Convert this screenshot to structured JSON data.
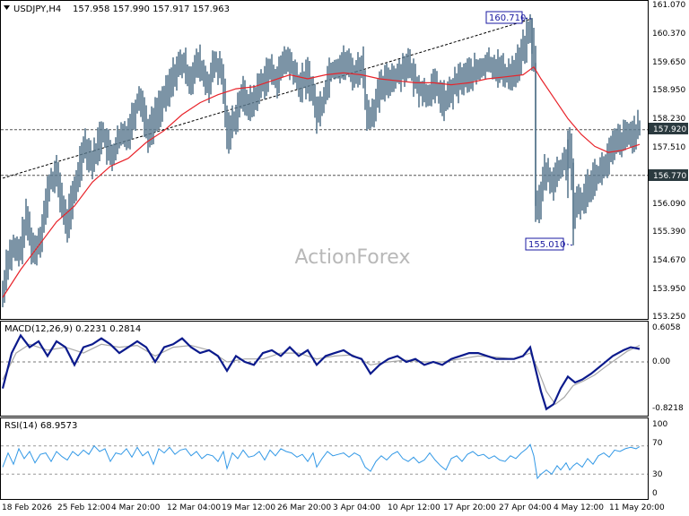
{
  "header": {
    "symbol": "USDJPY,H4",
    "ohlc": "157.958 157.990 157.917 157.963"
  },
  "watermark": "ActionForex",
  "colors": {
    "candle": "#5b7a8f",
    "ma": "#e8232a",
    "trendline": "#000000",
    "macd": "#0b1a8c",
    "signal": "#a8a8a8",
    "rsi": "#3399e6",
    "tag_bg": "#2b3a3f",
    "annot_border": "#1a1aa0"
  },
  "price_panel": {
    "y_ticks": [
      "161.070",
      "160.370",
      "159.650",
      "158.950",
      "158.230",
      "157.510",
      "156.090",
      "155.390",
      "154.670",
      "153.950",
      "153.250"
    ],
    "tags": {
      "current": "157.920",
      "level": "156.770"
    },
    "annotations": {
      "high": "160.710",
      "low": "155.010"
    }
  },
  "macd_panel": {
    "label": "MACD(12,26,9) 0.2231 0.2814",
    "y_ticks": [
      "0.6058",
      "0.00",
      "-0.8218"
    ]
  },
  "rsi_panel": {
    "label": "RSI(14) 68.9573",
    "y_ticks": [
      "100",
      "70",
      "30",
      "0"
    ]
  },
  "x_axis": {
    "labels": [
      "18 Feb 2026",
      "25 Feb 12:00",
      "4 Mar 20:00",
      "12 Mar 04:00",
      "19 Mar 12:00",
      "26 Mar 20:00",
      "3 Apr 04:00",
      "10 Apr 12:00",
      "17 Apr 20:00",
      "27 Apr 04:00",
      "4 May 12:00",
      "11 May 20:00"
    ]
  },
  "chart_data": {
    "type": "candlestick",
    "symbol": "USDJPY",
    "timeframe": "H4",
    "ylim": [
      153.25,
      161.07
    ],
    "price_path": [
      [
        0,
        153.8
      ],
      [
        4,
        154.6
      ],
      [
        10,
        154.9
      ],
      [
        18,
        154.8
      ],
      [
        26,
        155.7
      ],
      [
        34,
        154.8
      ],
      [
        42,
        155.3
      ],
      [
        52,
        156.6
      ],
      [
        60,
        156.8
      ],
      [
        70,
        155.5
      ],
      [
        80,
        156.4
      ],
      [
        90,
        157.6
      ],
      [
        100,
        157.1
      ],
      [
        110,
        157.9
      ],
      [
        120,
        157.2
      ],
      [
        130,
        157.7
      ],
      [
        140,
        157.9
      ],
      [
        152,
        158.8
      ],
      [
        162,
        157.8
      ],
      [
        172,
        158.4
      ],
      [
        182,
        158.8
      ],
      [
        192,
        159.4
      ],
      [
        200,
        159.6
      ],
      [
        208,
        159.2
      ],
      [
        218,
        159.6
      ],
      [
        228,
        159.0
      ],
      [
        236,
        159.6
      ],
      [
        244,
        159.3
      ],
      [
        250,
        157.8
      ],
      [
        258,
        158.2
      ],
      [
        266,
        158.8
      ],
      [
        276,
        158.5
      ],
      [
        286,
        159.0
      ],
      [
        296,
        159.4
      ],
      [
        306,
        159.2
      ],
      [
        314,
        159.7
      ],
      [
        322,
        159.5
      ],
      [
        330,
        159.0
      ],
      [
        340,
        159.3
      ],
      [
        350,
        158.3
      ],
      [
        356,
        158.6
      ],
      [
        364,
        159.4
      ],
      [
        372,
        159.5
      ],
      [
        382,
        159.6
      ],
      [
        392,
        159.3
      ],
      [
        400,
        159.6
      ],
      [
        406,
        158.2
      ],
      [
        412,
        158.4
      ],
      [
        420,
        158.9
      ],
      [
        430,
        159.2
      ],
      [
        440,
        159.3
      ],
      [
        450,
        159.6
      ],
      [
        460,
        159.1
      ],
      [
        470,
        158.8
      ],
      [
        482,
        159.0
      ],
      [
        492,
        158.6
      ],
      [
        500,
        158.9
      ],
      [
        510,
        159.2
      ],
      [
        520,
        159.3
      ],
      [
        530,
        159.4
      ],
      [
        540,
        159.6
      ],
      [
        550,
        159.5
      ],
      [
        560,
        159.3
      ],
      [
        570,
        159.4
      ],
      [
        578,
        159.8
      ],
      [
        586,
        160.4
      ],
      [
        590,
        160.3
      ],
      [
        592,
        159.6
      ],
      [
        594,
        156.2
      ],
      [
        598,
        156.0
      ],
      [
        604,
        156.9
      ],
      [
        612,
        156.6
      ],
      [
        620,
        156.9
      ],
      [
        628,
        157.2
      ],
      [
        632,
        157.6
      ],
      [
        636,
        155.6
      ],
      [
        640,
        156.2
      ],
      [
        646,
        156.1
      ],
      [
        652,
        156.5
      ],
      [
        660,
        156.8
      ],
      [
        668,
        156.9
      ],
      [
        676,
        157.3
      ],
      [
        684,
        157.6
      ],
      [
        692,
        157.7
      ],
      [
        700,
        157.8
      ],
      [
        710,
        157.96
      ]
    ],
    "moving_average": [
      [
        0,
        153.7
      ],
      [
        20,
        154.4
      ],
      [
        40,
        155.0
      ],
      [
        60,
        155.6
      ],
      [
        80,
        156.0
      ],
      [
        100,
        156.6
      ],
      [
        120,
        157.0
      ],
      [
        140,
        157.2
      ],
      [
        160,
        157.6
      ],
      [
        180,
        157.9
      ],
      [
        200,
        158.3
      ],
      [
        220,
        158.6
      ],
      [
        240,
        158.8
      ],
      [
        260,
        158.95
      ],
      [
        280,
        159.0
      ],
      [
        300,
        159.15
      ],
      [
        320,
        159.3
      ],
      [
        340,
        159.2
      ],
      [
        360,
        159.3
      ],
      [
        380,
        159.35
      ],
      [
        400,
        159.3
      ],
      [
        420,
        159.2
      ],
      [
        440,
        159.15
      ],
      [
        460,
        159.1
      ],
      [
        480,
        159.1
      ],
      [
        500,
        159.05
      ],
      [
        520,
        159.1
      ],
      [
        540,
        159.2
      ],
      [
        560,
        159.25
      ],
      [
        580,
        159.3
      ],
      [
        592,
        159.5
      ],
      [
        600,
        159.2
      ],
      [
        615,
        158.7
      ],
      [
        630,
        158.2
      ],
      [
        645,
        157.8
      ],
      [
        660,
        157.5
      ],
      [
        675,
        157.35
      ],
      [
        690,
        157.4
      ],
      [
        710,
        157.55
      ]
    ],
    "trendline": {
      "from": [
        0,
        156.7
      ],
      "to": [
        590,
        160.71
      ]
    },
    "high": 160.71,
    "low": 155.01,
    "levels": [
      157.92,
      156.77
    ],
    "macd_path": [
      [
        0,
        -0.45
      ],
      [
        10,
        0.15
      ],
      [
        20,
        0.45
      ],
      [
        30,
        0.25
      ],
      [
        40,
        0.35
      ],
      [
        50,
        0.1
      ],
      [
        60,
        0.35
      ],
      [
        70,
        0.25
      ],
      [
        80,
        -0.05
      ],
      [
        90,
        0.25
      ],
      [
        100,
        0.3
      ],
      [
        110,
        0.4
      ],
      [
        120,
        0.3
      ],
      [
        130,
        0.15
      ],
      [
        140,
        0.25
      ],
      [
        150,
        0.35
      ],
      [
        160,
        0.25
      ],
      [
        170,
        0.0
      ],
      [
        180,
        0.25
      ],
      [
        190,
        0.3
      ],
      [
        200,
        0.4
      ],
      [
        210,
        0.25
      ],
      [
        220,
        0.15
      ],
      [
        230,
        0.2
      ],
      [
        240,
        0.1
      ],
      [
        250,
        -0.15
      ],
      [
        260,
        0.1
      ],
      [
        270,
        0.0
      ],
      [
        280,
        -0.05
      ],
      [
        290,
        0.15
      ],
      [
        300,
        0.2
      ],
      [
        310,
        0.1
      ],
      [
        320,
        0.25
      ],
      [
        330,
        0.1
      ],
      [
        340,
        0.2
      ],
      [
        350,
        -0.05
      ],
      [
        360,
        0.1
      ],
      [
        370,
        0.15
      ],
      [
        380,
        0.2
      ],
      [
        390,
        0.1
      ],
      [
        400,
        0.05
      ],
      [
        410,
        -0.2
      ],
      [
        420,
        -0.05
      ],
      [
        430,
        0.05
      ],
      [
        440,
        0.1
      ],
      [
        450,
        0.0
      ],
      [
        460,
        0.05
      ],
      [
        470,
        -0.05
      ],
      [
        480,
        0.0
      ],
      [
        490,
        -0.05
      ],
      [
        500,
        0.05
      ],
      [
        510,
        0.1
      ],
      [
        520,
        0.15
      ],
      [
        530,
        0.15
      ],
      [
        540,
        0.1
      ],
      [
        550,
        0.05
      ],
      [
        560,
        0.05
      ],
      [
        570,
        0.05
      ],
      [
        580,
        0.1
      ],
      [
        588,
        0.25
      ],
      [
        592,
        0.0
      ],
      [
        600,
        -0.5
      ],
      [
        606,
        -0.8
      ],
      [
        614,
        -0.72
      ],
      [
        622,
        -0.45
      ],
      [
        630,
        -0.25
      ],
      [
        638,
        -0.35
      ],
      [
        646,
        -0.3
      ],
      [
        656,
        -0.2
      ],
      [
        668,
        -0.05
      ],
      [
        680,
        0.1
      ],
      [
        692,
        0.2
      ],
      [
        700,
        0.25
      ],
      [
        710,
        0.22
      ]
    ],
    "signal_path": [
      [
        0,
        -0.3
      ],
      [
        15,
        0.15
      ],
      [
        30,
        0.3
      ],
      [
        50,
        0.2
      ],
      [
        70,
        0.25
      ],
      [
        90,
        0.15
      ],
      [
        110,
        0.3
      ],
      [
        130,
        0.25
      ],
      [
        150,
        0.28
      ],
      [
        170,
        0.1
      ],
      [
        190,
        0.25
      ],
      [
        210,
        0.28
      ],
      [
        230,
        0.2
      ],
      [
        250,
        0.0
      ],
      [
        270,
        0.05
      ],
      [
        290,
        0.05
      ],
      [
        310,
        0.15
      ],
      [
        330,
        0.15
      ],
      [
        350,
        0.05
      ],
      [
        370,
        0.1
      ],
      [
        390,
        0.12
      ],
      [
        410,
        -0.05
      ],
      [
        430,
        0.0
      ],
      [
        450,
        0.03
      ],
      [
        470,
        0.0
      ],
      [
        490,
        0.0
      ],
      [
        510,
        0.05
      ],
      [
        530,
        0.1
      ],
      [
        550,
        0.08
      ],
      [
        570,
        0.05
      ],
      [
        588,
        0.15
      ],
      [
        596,
        -0.1
      ],
      [
        606,
        -0.5
      ],
      [
        616,
        -0.72
      ],
      [
        626,
        -0.6
      ],
      [
        636,
        -0.4
      ],
      [
        648,
        -0.32
      ],
      [
        660,
        -0.22
      ],
      [
        672,
        -0.08
      ],
      [
        684,
        0.05
      ],
      [
        696,
        0.18
      ],
      [
        710,
        0.28
      ]
    ],
    "rsi_path": [
      [
        0,
        40
      ],
      [
        6,
        60
      ],
      [
        12,
        44
      ],
      [
        18,
        66
      ],
      [
        24,
        52
      ],
      [
        30,
        62
      ],
      [
        36,
        46
      ],
      [
        42,
        58
      ],
      [
        48,
        60
      ],
      [
        54,
        48
      ],
      [
        60,
        62
      ],
      [
        66,
        55
      ],
      [
        72,
        50
      ],
      [
        78,
        62
      ],
      [
        84,
        56
      ],
      [
        90,
        64
      ],
      [
        96,
        58
      ],
      [
        102,
        70
      ],
      [
        108,
        62
      ],
      [
        114,
        66
      ],
      [
        120,
        48
      ],
      [
        126,
        60
      ],
      [
        132,
        58
      ],
      [
        138,
        66
      ],
      [
        144,
        54
      ],
      [
        150,
        68
      ],
      [
        156,
        56
      ],
      [
        162,
        62
      ],
      [
        168,
        44
      ],
      [
        174,
        66
      ],
      [
        180,
        60
      ],
      [
        186,
        68
      ],
      [
        192,
        58
      ],
      [
        198,
        64
      ],
      [
        204,
        66
      ],
      [
        210,
        56
      ],
      [
        216,
        62
      ],
      [
        222,
        52
      ],
      [
        228,
        58
      ],
      [
        234,
        56
      ],
      [
        240,
        48
      ],
      [
        246,
        62
      ],
      [
        250,
        38
      ],
      [
        256,
        60
      ],
      [
        262,
        52
      ],
      [
        268,
        64
      ],
      [
        274,
        54
      ],
      [
        280,
        56
      ],
      [
        286,
        62
      ],
      [
        292,
        50
      ],
      [
        298,
        64
      ],
      [
        304,
        56
      ],
      [
        310,
        66
      ],
      [
        316,
        62
      ],
      [
        322,
        60
      ],
      [
        328,
        54
      ],
      [
        334,
        58
      ],
      [
        340,
        48
      ],
      [
        346,
        60
      ],
      [
        350,
        40
      ],
      [
        356,
        52
      ],
      [
        362,
        62
      ],
      [
        368,
        56
      ],
      [
        374,
        58
      ],
      [
        380,
        60
      ],
      [
        386,
        54
      ],
      [
        392,
        60
      ],
      [
        398,
        56
      ],
      [
        404,
        40
      ],
      [
        410,
        34
      ],
      [
        416,
        48
      ],
      [
        422,
        56
      ],
      [
        428,
        50
      ],
      [
        434,
        58
      ],
      [
        440,
        62
      ],
      [
        446,
        52
      ],
      [
        452,
        48
      ],
      [
        458,
        54
      ],
      [
        464,
        46
      ],
      [
        470,
        50
      ],
      [
        476,
        60
      ],
      [
        482,
        50
      ],
      [
        488,
        42
      ],
      [
        494,
        36
      ],
      [
        500,
        52
      ],
      [
        506,
        56
      ],
      [
        512,
        48
      ],
      [
        518,
        58
      ],
      [
        524,
        62
      ],
      [
        530,
        56
      ],
      [
        536,
        58
      ],
      [
        542,
        52
      ],
      [
        548,
        56
      ],
      [
        554,
        50
      ],
      [
        560,
        48
      ],
      [
        566,
        56
      ],
      [
        572,
        52
      ],
      [
        578,
        60
      ],
      [
        584,
        66
      ],
      [
        588,
        72
      ],
      [
        592,
        56
      ],
      [
        596,
        24
      ],
      [
        600,
        30
      ],
      [
        606,
        36
      ],
      [
        612,
        30
      ],
      [
        618,
        42
      ],
      [
        622,
        36
      ],
      [
        628,
        46
      ],
      [
        632,
        36
      ],
      [
        636,
        42
      ],
      [
        640,
        46
      ],
      [
        646,
        40
      ],
      [
        652,
        52
      ],
      [
        658,
        44
      ],
      [
        664,
        56
      ],
      [
        670,
        60
      ],
      [
        676,
        54
      ],
      [
        682,
        64
      ],
      [
        688,
        62
      ],
      [
        694,
        66
      ],
      [
        700,
        68
      ],
      [
        706,
        66
      ],
      [
        710,
        69
      ]
    ]
  }
}
